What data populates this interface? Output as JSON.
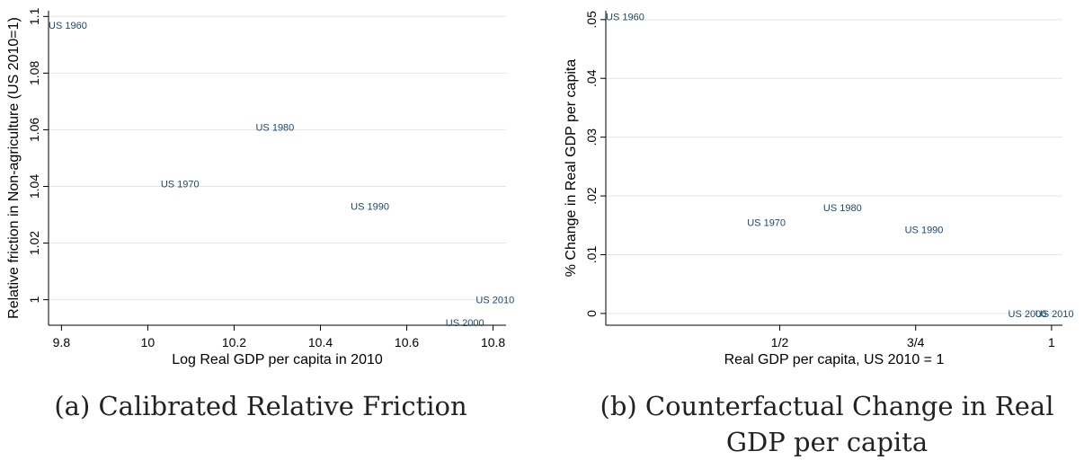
{
  "chart_data": [
    {
      "type": "scatter",
      "panel": "a",
      "caption": "(a) Calibrated Relative Friction",
      "xlabel": "Log Real GDP per capita in 2010",
      "ylabel": "Relative friction in Non-agriculture (US 2010=1)",
      "xlim": [
        9.77,
        10.83
      ],
      "ylim": [
        0.991,
        1.102
      ],
      "xticks": [
        9.8,
        10,
        10.2,
        10.4,
        10.6,
        10.8
      ],
      "xtick_labels": [
        "9.8",
        "10",
        "10.2",
        "10.4",
        "10.6",
        "10.8"
      ],
      "yticks": [
        1,
        1.02,
        1.04,
        1.06,
        1.08,
        1.1
      ],
      "ytick_labels": [
        "1",
        "1.02",
        "1.04",
        "1.06",
        "1.08",
        "1.1"
      ],
      "grid": true,
      "legend": "none",
      "points": [
        {
          "label": "US 1960",
          "x": 9.77,
          "y": 1.097
        },
        {
          "label": "US 1970",
          "x": 10.03,
          "y": 1.041
        },
        {
          "label": "US 1980",
          "x": 10.25,
          "y": 1.061
        },
        {
          "label": "US 1990",
          "x": 10.47,
          "y": 1.033
        },
        {
          "label": "US 2000",
          "x": 10.69,
          "y": 0.992
        },
        {
          "label": "US 2010",
          "x": 10.76,
          "y": 1.0
        }
      ]
    },
    {
      "type": "scatter",
      "panel": "b",
      "caption": "(b) Counterfactual Change in Real GDP per capita",
      "xlabel": "Real GDP per capita, US 2010 = 1",
      "ylabel": "% Change in Real GDP per capita",
      "xlim": [
        0.18,
        1.02
      ],
      "ylim": [
        -0.002,
        0.0515
      ],
      "xticks": [
        0.5,
        0.75,
        1
      ],
      "xtick_labels": [
        "1/2",
        "3/4",
        "1"
      ],
      "yticks": [
        0,
        0.01,
        0.02,
        0.03,
        0.04,
        0.05
      ],
      "ytick_labels": [
        "0",
        ".01",
        ".02",
        ".03",
        ".04",
        ".05"
      ],
      "grid": true,
      "legend": "none",
      "points": [
        {
          "label": "US 1960",
          "x": 0.18,
          "y": 0.0505
        },
        {
          "label": "US 1970",
          "x": 0.44,
          "y": 0.0155
        },
        {
          "label": "US 1980",
          "x": 0.58,
          "y": 0.018
        },
        {
          "label": "US 1990",
          "x": 0.73,
          "y": 0.0143
        },
        {
          "label": "US 2000",
          "x": 0.92,
          "y": 0.0
        },
        {
          "label": "US 2010",
          "x": 0.97,
          "y": 0.0
        }
      ]
    }
  ],
  "colors": {
    "label": "#1a476f",
    "axis": "#000000",
    "grid": "#e5e5e5",
    "text": "#000000"
  }
}
